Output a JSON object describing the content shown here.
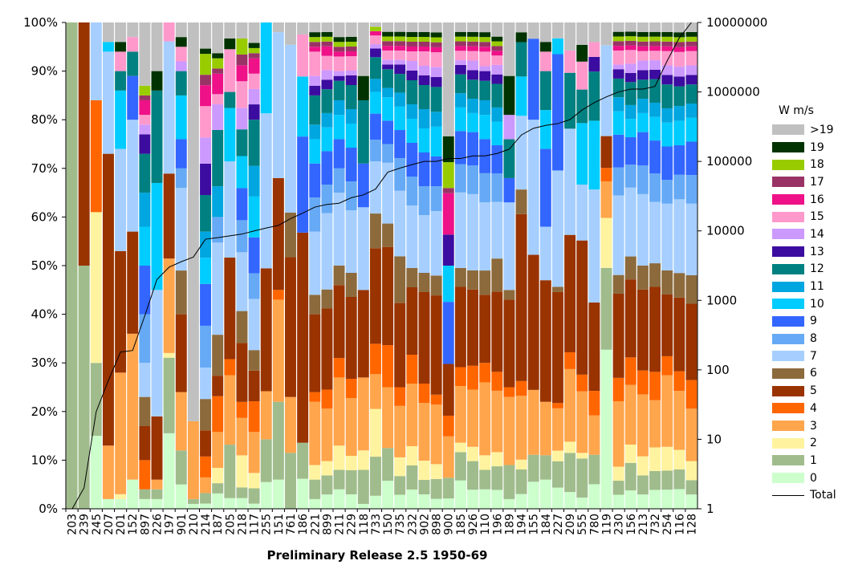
{
  "chart_data": {
    "type": "stacked bar with line (dual axis)",
    "xlabel": "Preliminary Release 2.5 1950-69",
    "ylabel_left": "",
    "ylabel_right": "",
    "y_left_ticks": [
      "0%",
      "10%",
      "20%",
      "30%",
      "40%",
      "50%",
      "60%",
      "70%",
      "80%",
      "90%",
      "100%"
    ],
    "y_left_range": [
      0,
      100
    ],
    "y_right_scale": "log",
    "y_right_range": [
      1,
      10000000
    ],
    "y_right_ticks": [
      "1",
      "10",
      "100",
      "1000",
      "10000",
      "100000",
      "1000000",
      "10000000"
    ],
    "legend_title": "W  m/s",
    "legend_position": "right",
    "categories": [
      "203",
      "239",
      "245",
      "207",
      "201",
      "152",
      "897",
      "226",
      "197",
      "901",
      "210",
      "214",
      "187",
      "205",
      "218",
      "117",
      "255",
      "151",
      "761",
      "186",
      "221",
      "899",
      "211",
      "229",
      "118",
      "733",
      "150",
      "735",
      "232",
      "902",
      "898",
      "900",
      "185",
      "926",
      "110",
      "196",
      "189",
      "194",
      "155",
      "184",
      "227",
      "209",
      "555",
      "780",
      "119",
      "230",
      "156",
      "213",
      "732",
      "254",
      "116",
      "128"
    ],
    "series_names": [
      "0",
      "1",
      "2",
      "3",
      "4",
      "5",
      "6",
      "7",
      "8",
      "9",
      "10",
      "11",
      "12",
      "13",
      "14",
      "15",
      "16",
      "17",
      "18",
      "19",
      ">19"
    ],
    "series_colors": {
      "0": "#ccffcc",
      "1": "#a0bc8c",
      "2": "#fff3a0",
      "3": "#ffa54c",
      "4": "#ff6600",
      "5": "#993300",
      "6": "#8c6a3c",
      "7": "#a6cfff",
      "8": "#66aaf5",
      "9": "#3366ff",
      "10": "#00ccff",
      "11": "#00a6e0",
      "12": "#008080",
      "13": "#3c0ca0",
      "14": "#cc99ff",
      "15": "#ff99cc",
      "16": "#ee1188",
      "17": "#993366",
      "18": "#99cc00",
      "19": "#003300",
      ">19": "#c0c0c0"
    },
    "line_series": {
      "name": "Total",
      "color": "#000000"
    },
    "percent_values": [
      [
        0,
        100,
        0,
        0,
        0,
        0,
        0,
        0,
        0,
        0,
        0,
        0,
        0,
        0,
        0,
        0,
        0,
        0,
        0,
        0,
        0
      ],
      [
        0,
        50,
        0,
        0,
        0,
        50,
        0,
        0,
        0,
        0,
        0,
        0,
        0,
        0,
        0,
        0,
        0,
        0,
        0,
        0,
        0
      ],
      [
        15,
        15,
        31,
        0,
        23,
        0,
        0,
        16,
        0,
        0,
        0,
        0,
        0,
        0,
        0,
        0,
        0,
        0,
        0,
        0,
        0
      ],
      [
        2,
        0,
        0,
        11,
        0,
        60,
        0,
        21,
        0,
        0,
        2,
        0,
        0,
        0,
        0,
        0,
        0,
        0,
        0,
        0,
        4
      ],
      [
        2,
        0,
        1,
        25,
        0,
        25,
        0,
        21,
        0,
        0,
        12,
        0,
        4,
        0,
        0,
        4,
        0,
        0,
        0,
        2,
        4
      ],
      [
        6,
        0,
        0,
        30,
        0,
        21,
        0,
        23,
        0,
        9,
        0,
        0,
        5,
        0,
        0,
        3,
        0,
        0,
        0,
        0,
        3
      ],
      [
        2,
        2,
        0,
        0,
        6,
        7,
        6,
        7,
        10,
        10,
        8,
        7,
        8,
        4,
        2,
        2,
        3,
        1,
        2,
        0,
        13
      ],
      [
        2,
        2,
        0,
        2,
        0,
        13,
        0,
        26,
        0,
        0,
        22,
        0,
        19,
        0,
        0,
        0,
        0,
        0,
        0,
        4,
        10
      ],
      [
        16,
        16,
        1,
        20,
        0,
        18,
        0,
        28,
        0,
        0,
        0,
        0,
        0,
        0,
        0,
        4,
        0,
        0,
        0,
        0,
        0
      ],
      [
        5,
        7,
        0,
        12,
        0,
        16,
        9,
        17,
        4,
        6,
        9,
        0,
        5,
        0,
        2,
        3,
        0,
        0,
        0,
        2,
        3
      ],
      [
        1,
        1,
        0,
        16,
        0,
        0,
        0,
        0,
        0,
        0,
        0,
        0,
        0,
        0,
        0,
        0,
        0,
        0,
        0,
        0,
        82
      ],
      [
        1,
        2,
        0,
        3,
        4,
        5,
        6,
        6,
        8,
        8,
        5,
        5,
        7,
        6,
        5,
        6,
        4,
        2,
        4,
        1,
        5
      ],
      [
        3,
        2,
        3,
        7,
        7,
        4,
        8,
        18,
        5,
        0,
        0,
        6,
        11,
        0,
        5,
        2,
        4,
        1,
        2,
        1,
        6
      ],
      [
        2,
        10,
        0,
        13,
        3,
        19,
        0,
        18,
        0,
        0,
        10,
        0,
        3,
        0,
        0,
        8,
        0,
        0,
        0,
        2,
        3
      ],
      [
        2,
        2,
        6,
        7,
        3,
        11,
        6,
        11,
        6,
        6,
        6,
        0,
        5,
        0,
        4,
        5,
        3,
        2,
        3,
        0,
        3
      ],
      [
        1,
        3,
        3,
        8,
        6,
        6,
        4,
        10,
        5,
        7,
        8,
        6,
        9,
        3,
        3,
        3,
        3,
        1,
        1,
        1,
        4
      ],
      [
        5,
        8,
        0,
        9,
        0,
        23,
        0,
        29,
        0,
        0,
        17,
        0,
        0,
        0,
        0,
        0,
        0,
        0,
        0,
        0,
        0
      ],
      [
        6,
        16,
        0,
        21,
        2,
        23,
        0,
        30,
        0,
        0,
        0,
        0,
        0,
        0,
        0,
        0,
        0,
        0,
        0,
        0,
        2
      ],
      [
        0,
        10,
        0,
        10,
        0,
        25,
        8,
        30,
        0,
        0,
        0,
        0,
        0,
        0,
        0,
        0,
        0,
        0,
        0,
        0,
        4
      ],
      [
        5,
        6,
        0,
        0,
        0,
        35,
        0,
        0,
        0,
        16,
        10,
        0,
        0,
        0,
        0,
        7,
        0,
        0,
        0,
        0,
        2
      ],
      [
        2,
        4,
        3,
        13,
        2,
        16,
        4,
        13,
        7,
        7,
        5,
        3,
        6,
        2,
        2,
        5,
        1,
        1,
        1,
        1,
        2
      ],
      [
        3,
        4,
        3,
        11,
        4,
        17,
        4,
        16,
        6,
        7,
        5,
        3,
        5,
        2,
        2,
        3,
        2,
        1,
        1,
        1,
        2
      ],
      [
        4,
        4,
        5,
        14,
        4,
        15,
        4,
        15,
        5,
        6,
        5,
        3,
        4,
        1,
        1,
        3,
        1,
        1,
        1,
        1,
        3
      ],
      [
        3,
        5,
        3,
        12,
        4,
        17,
        5,
        13,
        6,
        7,
        5,
        3,
        5,
        2,
        1,
        3,
        1,
        1,
        1,
        1,
        3
      ],
      [
        1,
        7,
        4,
        15,
        0,
        18,
        0,
        17,
        0,
        9,
        0,
        0,
        13,
        0,
        0,
        0,
        0,
        0,
        0,
        5,
        11
      ],
      [
        3,
        9,
        11,
        8,
        7,
        22,
        8,
        12,
        5,
        6,
        5,
        3,
        5,
        2,
        1,
        2,
        1,
        0,
        1,
        0,
        1
      ],
      [
        6,
        7,
        0,
        13,
        9,
        21,
        5,
        13,
        4,
        5,
        5,
        2,
        4,
        1,
        1,
        2,
        1,
        1,
        1,
        1,
        2
      ],
      [
        3,
        4,
        4,
        11,
        4,
        18,
        10,
        14,
        7,
        6,
        5,
        3,
        4,
        2,
        1,
        2,
        1,
        1,
        1,
        1,
        2
      ],
      [
        4,
        5,
        4,
        13,
        6,
        14,
        4,
        13,
        6,
        7,
        5,
        3,
        5,
        2,
        2,
        2,
        1,
        1,
        1,
        1,
        2
      ],
      [
        3,
        3,
        4,
        12,
        4,
        19,
        4,
        12,
        6,
        7,
        5,
        4,
        5,
        2,
        2,
        3,
        1,
        1,
        1,
        1,
        2
      ],
      [
        2,
        4,
        3,
        12,
        2,
        20,
        4,
        13,
        5,
        6,
        6,
        3,
        5,
        2,
        2,
        3,
        1,
        1,
        1,
        1,
        2
      ],
      [
        2,
        4,
        0,
        8,
        4,
        10,
        0,
        0,
        0,
        12,
        7,
        0,
        0,
        6,
        0,
        0,
        8,
        1,
        5,
        5,
        22
      ],
      [
        6,
        6,
        2,
        12,
        4,
        17,
        4,
        16,
        6,
        7,
        5,
        3,
        4,
        2,
        1,
        2,
        1,
        1,
        1,
        1,
        2
      ],
      [
        4,
        6,
        3,
        12,
        5,
        16,
        4,
        16,
        6,
        7,
        4,
        3,
        4,
        2,
        2,
        2,
        1,
        1,
        1,
        1,
        2
      ],
      [
        4,
        4,
        3,
        15,
        4,
        14,
        5,
        14,
        6,
        7,
        5,
        3,
        4,
        2,
        1,
        3,
        1,
        1,
        1,
        1,
        2
      ],
      [
        4,
        5,
        3,
        13,
        4,
        17,
        7,
        12,
        6,
        6,
        5,
        3,
        5,
        2,
        2,
        2,
        1,
        1,
        1,
        1,
        3
      ],
      [
        2,
        7,
        0,
        14,
        2,
        18,
        2,
        18,
        0,
        5,
        0,
        0,
        8,
        0,
        5,
        0,
        0,
        0,
        0,
        8,
        11
      ],
      [
        3,
        5,
        2,
        13,
        3,
        34,
        5,
        15,
        0,
        0,
        8,
        0,
        7,
        0,
        0,
        0,
        0,
        0,
        0,
        2,
        2
      ],
      [
        5,
        5,
        0,
        12,
        0,
        25,
        0,
        25,
        0,
        15,
        0,
        0,
        0,
        0,
        0,
        0,
        0,
        0,
        0,
        0,
        3
      ],
      [
        6,
        5,
        0,
        11,
        0,
        25,
        0,
        11,
        0,
        16,
        8,
        0,
        8,
        0,
        0,
        4,
        0,
        0,
        0,
        2,
        4
      ],
      [
        4,
        5,
        2,
        8,
        1,
        21,
        1,
        22,
        0,
        22,
        3,
        0,
        0,
        0,
        0,
        0,
        0,
        0,
        0,
        0,
        3
      ],
      [
        3,
        7,
        2,
        13,
        3,
        21,
        0,
        19,
        0,
        0,
        0,
        0,
        10,
        0,
        0,
        4,
        0,
        0,
        0,
        0,
        5
      ],
      [
        2,
        7,
        1,
        11,
        3,
        24,
        0,
        10,
        0,
        0,
        11,
        0,
        6,
        0,
        0,
        5,
        0,
        0,
        0,
        3,
        4
      ],
      [
        5,
        6,
        0,
        8,
        5,
        18,
        0,
        23,
        0,
        0,
        14,
        0,
        10,
        3,
        0,
        3,
        0,
        0,
        0,
        0,
        4
      ],
      [
        35,
        18,
        11,
        8,
        3,
        7,
        0,
        20,
        0,
        0,
        0,
        0,
        0,
        0,
        0,
        0,
        0,
        0,
        0,
        0,
        5
      ],
      [
        3,
        3,
        3,
        14,
        5,
        18,
        4,
        17,
        6,
        7,
        5,
        3,
        4,
        2,
        1,
        3,
        1,
        1,
        1,
        1,
        2
      ],
      [
        4,
        6,
        4,
        13,
        6,
        17,
        5,
        15,
        5,
        6,
        4,
        3,
        5,
        2,
        2,
        3,
        1,
        1,
        1,
        1,
        2
      ],
      [
        3,
        4,
        4,
        13,
        5,
        17,
        5,
        15,
        6,
        7,
        4,
        3,
        4,
        2,
        2,
        2,
        1,
        1,
        1,
        1,
        2
      ],
      [
        4,
        4,
        5,
        10,
        6,
        18,
        5,
        13,
        6,
        7,
        5,
        3,
        5,
        2,
        2,
        2,
        1,
        1,
        1,
        1,
        2
      ],
      [
        4,
        4,
        5,
        15,
        4,
        13,
        5,
        14,
        5,
        7,
        5,
        3,
        5,
        2,
        2,
        3,
        1,
        1,
        1,
        1,
        2
      ],
      [
        4,
        4,
        4,
        12,
        4,
        15,
        5,
        15,
        5,
        6,
        5,
        3,
        4,
        2,
        2,
        3,
        1,
        1,
        1,
        1,
        2
      ],
      [
        3,
        3,
        4,
        11,
        6,
        16,
        6,
        15,
        6,
        7,
        5,
        3,
        4,
        2,
        2,
        3,
        1,
        1,
        1,
        1,
        2
      ]
    ],
    "total_values": [
      1,
      2,
      25,
      70,
      180,
      190,
      600,
      2000,
      3000,
      3600,
      4200,
      7600,
      8000,
      8500,
      9000,
      10000,
      11000,
      12000,
      15000,
      18000,
      22000,
      24000,
      25000,
      30000,
      33000,
      40000,
      70000,
      80000,
      90000,
      100000,
      100000,
      110000,
      110000,
      120000,
      120000,
      130000,
      150000,
      240000,
      300000,
      330000,
      350000,
      400000,
      550000,
      700000,
      850000,
      1000000,
      1100000,
      1100000,
      1200000,
      2800000,
      6000000,
      10000000
    ]
  }
}
